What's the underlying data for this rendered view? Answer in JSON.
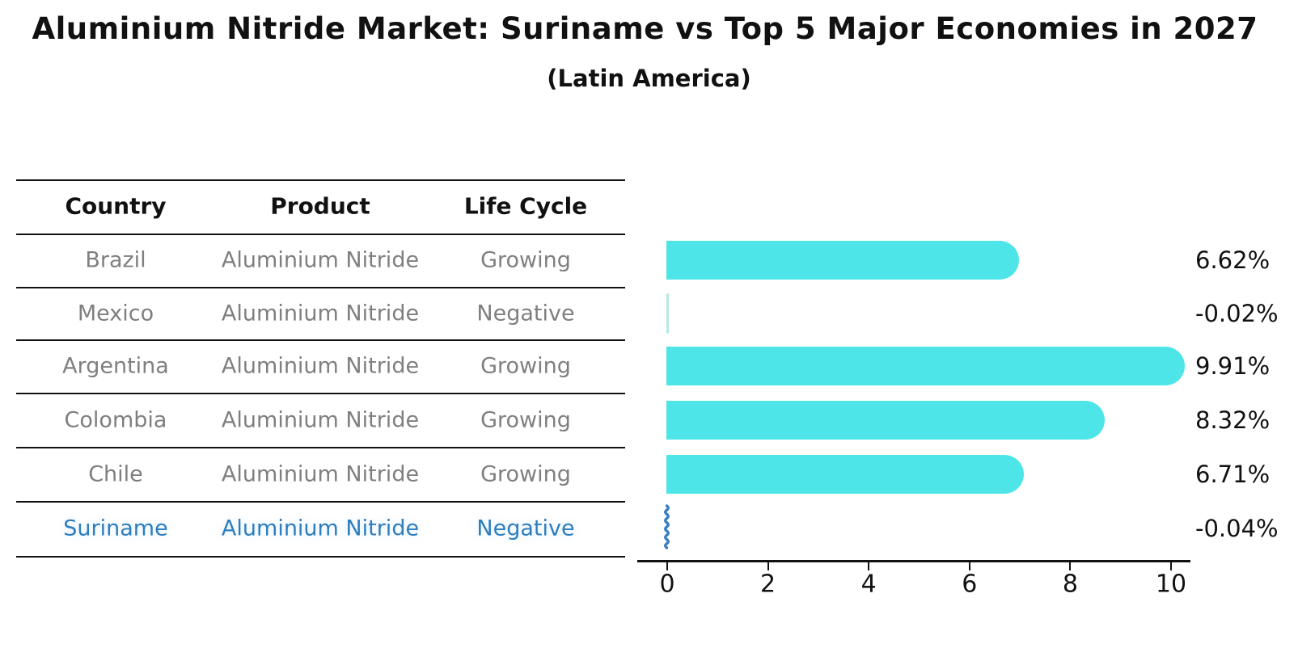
{
  "chart_data": {
    "type": "bar",
    "orientation": "horizontal",
    "title": "Aluminium Nitride Market: Suriname vs Top 5 Major Economies in 2027",
    "subtitle": "(Latin America)",
    "categories": [
      "Brazil",
      "Mexico",
      "Argentina",
      "Colombia",
      "Chile",
      "Suriname"
    ],
    "values": [
      6.62,
      -0.02,
      9.91,
      8.32,
      6.71,
      -0.04
    ],
    "value_labels": [
      "6.62%",
      "-0.02%",
      "9.91%",
      "8.32%",
      "6.71%",
      "-0.04%"
    ],
    "xticks": [
      "0",
      "2",
      "4",
      "6",
      "8",
      "10"
    ],
    "xlim": [
      0,
      10.5
    ],
    "grid": false,
    "legend": "none",
    "highlight_category": "Suriname"
  },
  "table": {
    "headers": [
      "Country",
      "Product",
      "Life Cycle"
    ],
    "rows": [
      {
        "country": "Brazil",
        "product": "Aluminium Nitride",
        "life_cycle": "Growing",
        "highlight": false
      },
      {
        "country": "Mexico",
        "product": "Aluminium Nitride",
        "life_cycle": "Negative",
        "highlight": false
      },
      {
        "country": "Argentina",
        "product": "Aluminium Nitride",
        "life_cycle": "Growing",
        "highlight": false
      },
      {
        "country": "Colombia",
        "product": "Aluminium Nitride",
        "life_cycle": "Growing",
        "highlight": false
      },
      {
        "country": "Chile",
        "product": "Aluminium Nitride",
        "life_cycle": "Growing",
        "highlight": false
      },
      {
        "country": "Suriname",
        "product": "Aluminium Nitride",
        "life_cycle": "Negative",
        "highlight": true
      }
    ]
  },
  "colors": {
    "bar": "#4DE5E8",
    "faint_bar": "rgba(120,215,212,0.55)",
    "highlight_text": "#2E7EBE",
    "squiggle": "#3B7EC2",
    "row_text": "#7f7f7f",
    "axis": "#111111"
  }
}
